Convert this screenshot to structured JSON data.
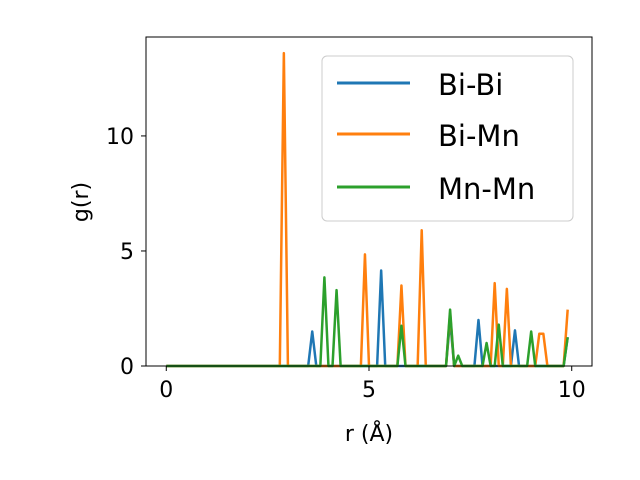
{
  "chart_data": {
    "type": "line",
    "title": "",
    "xlabel": "r (Å)",
    "ylabel": "g(r)",
    "xlim": [
      -0.5,
      10.5
    ],
    "ylim": [
      0,
      14.3
    ],
    "xticks": [
      0,
      5,
      10
    ],
    "yticks": [
      0,
      5,
      10
    ],
    "xtick_labels": [
      "0",
      "5",
      "10"
    ],
    "ytick_labels": [
      "0",
      "5",
      "10"
    ],
    "grid": false,
    "legend_position": "top-right",
    "series": [
      {
        "name": "Bi-Bi",
        "color": "#1f77b4",
        "points": [
          [
            0,
            0
          ],
          [
            3.5,
            0
          ],
          [
            3.6,
            1.5
          ],
          [
            3.7,
            0
          ],
          [
            5.2,
            0
          ],
          [
            5.3,
            4.15
          ],
          [
            5.4,
            0
          ],
          [
            6.9,
            0
          ],
          [
            7.0,
            2.0
          ],
          [
            7.1,
            0
          ],
          [
            7.6,
            0
          ],
          [
            7.7,
            2.0
          ],
          [
            7.8,
            0
          ],
          [
            8.5,
            0
          ],
          [
            8.6,
            1.55
          ],
          [
            8.7,
            0
          ],
          [
            9.8,
            0
          ],
          [
            9.9,
            1.25
          ]
        ]
      },
      {
        "name": "Bi-Mn",
        "color": "#ff7f0e",
        "points": [
          [
            0,
            0
          ],
          [
            2.8,
            0
          ],
          [
            2.9,
            13.6
          ],
          [
            3.0,
            0
          ],
          [
            4.8,
            0
          ],
          [
            4.9,
            4.85
          ],
          [
            5.0,
            0
          ],
          [
            5.7,
            0
          ],
          [
            5.8,
            3.5
          ],
          [
            5.9,
            0
          ],
          [
            6.2,
            0
          ],
          [
            6.3,
            5.9
          ],
          [
            6.4,
            0
          ],
          [
            6.9,
            0
          ],
          [
            7.0,
            2.3
          ],
          [
            7.1,
            0
          ],
          [
            8.0,
            0
          ],
          [
            8.1,
            3.6
          ],
          [
            8.2,
            0
          ],
          [
            8.3,
            0
          ],
          [
            8.4,
            3.35
          ],
          [
            8.5,
            0
          ],
          [
            9.1,
            0
          ],
          [
            9.2,
            1.4
          ],
          [
            9.3,
            1.4
          ],
          [
            9.4,
            0
          ],
          [
            9.8,
            0
          ],
          [
            9.9,
            2.45
          ]
        ]
      },
      {
        "name": "Mn-Mn",
        "color": "#2ca02c",
        "points": [
          [
            0,
            0
          ],
          [
            3.8,
            0
          ],
          [
            3.9,
            3.85
          ],
          [
            4.0,
            0
          ],
          [
            4.1,
            0
          ],
          [
            4.2,
            3.3
          ],
          [
            4.3,
            0
          ],
          [
            5.7,
            0
          ],
          [
            5.8,
            1.75
          ],
          [
            5.9,
            0
          ],
          [
            6.9,
            0
          ],
          [
            7.0,
            2.45
          ],
          [
            7.1,
            0
          ],
          [
            7.2,
            0.45
          ],
          [
            7.3,
            0
          ],
          [
            7.8,
            0
          ],
          [
            7.9,
            1.0
          ],
          [
            8.0,
            0
          ],
          [
            8.1,
            0
          ],
          [
            8.2,
            1.8
          ],
          [
            8.3,
            0
          ],
          [
            8.9,
            0
          ],
          [
            9.0,
            1.5
          ],
          [
            9.1,
            0
          ],
          [
            9.8,
            0
          ],
          [
            9.9,
            1.25
          ]
        ]
      }
    ]
  }
}
